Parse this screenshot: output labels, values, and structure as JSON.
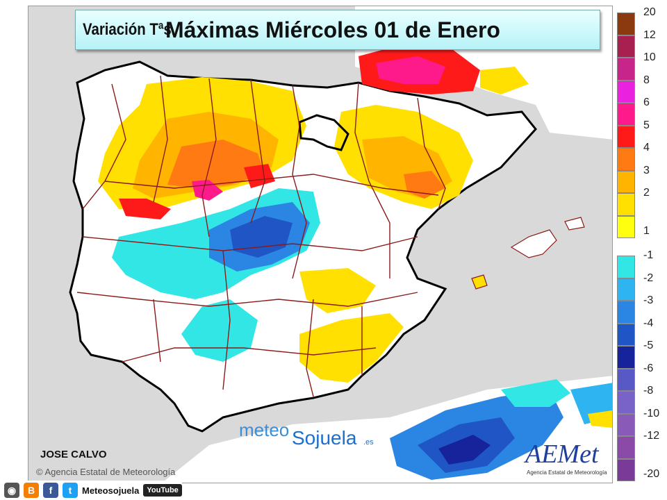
{
  "title": {
    "prefix": "Variación Tªs.",
    "main": "Máximas Miércoles 01 de Enero"
  },
  "legend": {
    "positive": [
      {
        "label": "20",
        "color": "#8b3a10"
      },
      {
        "label": "12",
        "color": "#a8204f"
      },
      {
        "label": "10",
        "color": "#c8258a"
      },
      {
        "label": "8",
        "color": "#ea22e0"
      },
      {
        "label": "6",
        "color": "#ff1a8c"
      },
      {
        "label": "5",
        "color": "#ff1a1a"
      },
      {
        "label": "4",
        "color": "#ff7a12"
      },
      {
        "label": "3",
        "color": "#ffb400"
      },
      {
        "label": "2",
        "color": "#ffe000"
      },
      {
        "label": "1",
        "color": "#ffff10"
      }
    ],
    "negative": [
      {
        "label": "-1",
        "color": "#33e6e6"
      },
      {
        "label": "-2",
        "color": "#2eb4f0"
      },
      {
        "label": "-3",
        "color": "#2a86e2"
      },
      {
        "label": "-4",
        "color": "#1f55c4"
      },
      {
        "label": "-5",
        "color": "#17239a"
      },
      {
        "label": "-6",
        "color": "#5858c6"
      },
      {
        "label": "-8",
        "color": "#7a63c8"
      },
      {
        "label": "-10",
        "color": "#8a5ab8"
      },
      {
        "label": "-12",
        "color": "#8b4aa8"
      },
      {
        "label": "-20",
        "color": "#7a3a98"
      }
    ]
  },
  "credit": "JOSE CALVO",
  "agency": "Agencia Estatal de Meteorología",
  "brand": {
    "part1": "meteo",
    "part2": "Sojuela",
    "suffix": ".es"
  },
  "logo": {
    "name": "AEMet",
    "subtitle": "Agencia Estatal de Meteorología"
  },
  "bottom_bar": {
    "label": "Meteosojuela",
    "youtube": "YouTube"
  },
  "icons": [
    "instagram-icon",
    "blogger-icon",
    "facebook-icon",
    "twitter-icon",
    "youtube-icon"
  ]
}
